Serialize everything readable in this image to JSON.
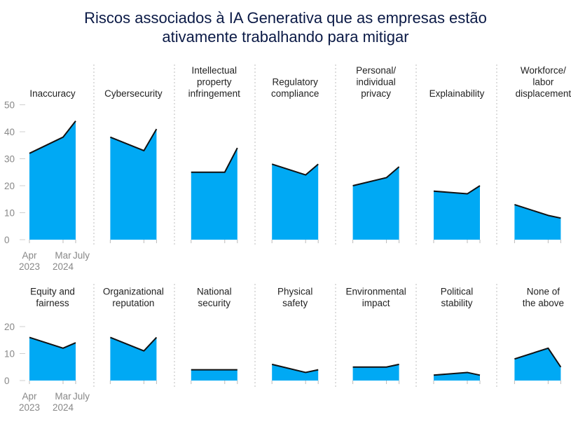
{
  "title_lines": [
    "Riscos associados à IA Generativa que as empresas estão",
    "ativamente trabalhando para mitigar"
  ],
  "colors": {
    "area": "#00a9f4",
    "line": "#111111",
    "divider": "#bdbdbd",
    "tick": "#888888"
  },
  "chart_data": {
    "type": "area",
    "x": [
      [
        "Apr",
        "2023"
      ],
      [
        "Mar",
        "2024"
      ],
      [
        "July",
        ""
      ]
    ],
    "rows": [
      {
        "ylim": [
          0,
          50
        ],
        "yticks": [
          0,
          10,
          20,
          30,
          40,
          50
        ]
      },
      {
        "ylim": [
          0,
          20
        ],
        "yticks": [
          0,
          10,
          20
        ]
      }
    ],
    "panels": [
      {
        "title": [
          "Inaccuracy"
        ],
        "values": [
          32,
          38,
          44
        ]
      },
      {
        "title": [
          "Cybersecurity"
        ],
        "values": [
          38,
          33,
          41
        ]
      },
      {
        "title": [
          "Intellectual",
          "property",
          "infringement"
        ],
        "values": [
          25,
          25,
          34
        ]
      },
      {
        "title": [
          "Regulatory",
          "compliance"
        ],
        "values": [
          28,
          24,
          28
        ]
      },
      {
        "title": [
          "Personal/",
          "individual",
          "privacy"
        ],
        "values": [
          20,
          23,
          27
        ]
      },
      {
        "title": [
          "Explainability"
        ],
        "values": [
          18,
          17,
          20
        ]
      },
      {
        "title": [
          "Workforce/",
          "labor",
          "displacement"
        ],
        "values": [
          13,
          9,
          8
        ]
      },
      {
        "title": [
          "Equity and",
          "fairness"
        ],
        "values": [
          16,
          12,
          14
        ]
      },
      {
        "title": [
          "Organizational",
          "reputation"
        ],
        "values": [
          16,
          11,
          16
        ]
      },
      {
        "title": [
          "National",
          "security"
        ],
        "values": [
          4,
          4,
          4
        ]
      },
      {
        "title": [
          "Physical",
          "safety"
        ],
        "values": [
          6,
          3,
          4
        ]
      },
      {
        "title": [
          "Environmental",
          "impact"
        ],
        "values": [
          5,
          5,
          6
        ]
      },
      {
        "title": [
          "Political",
          "stability"
        ],
        "values": [
          2,
          3,
          2
        ]
      },
      {
        "title": [
          "None of",
          "the above"
        ],
        "values": [
          8,
          12,
          5
        ]
      }
    ]
  }
}
